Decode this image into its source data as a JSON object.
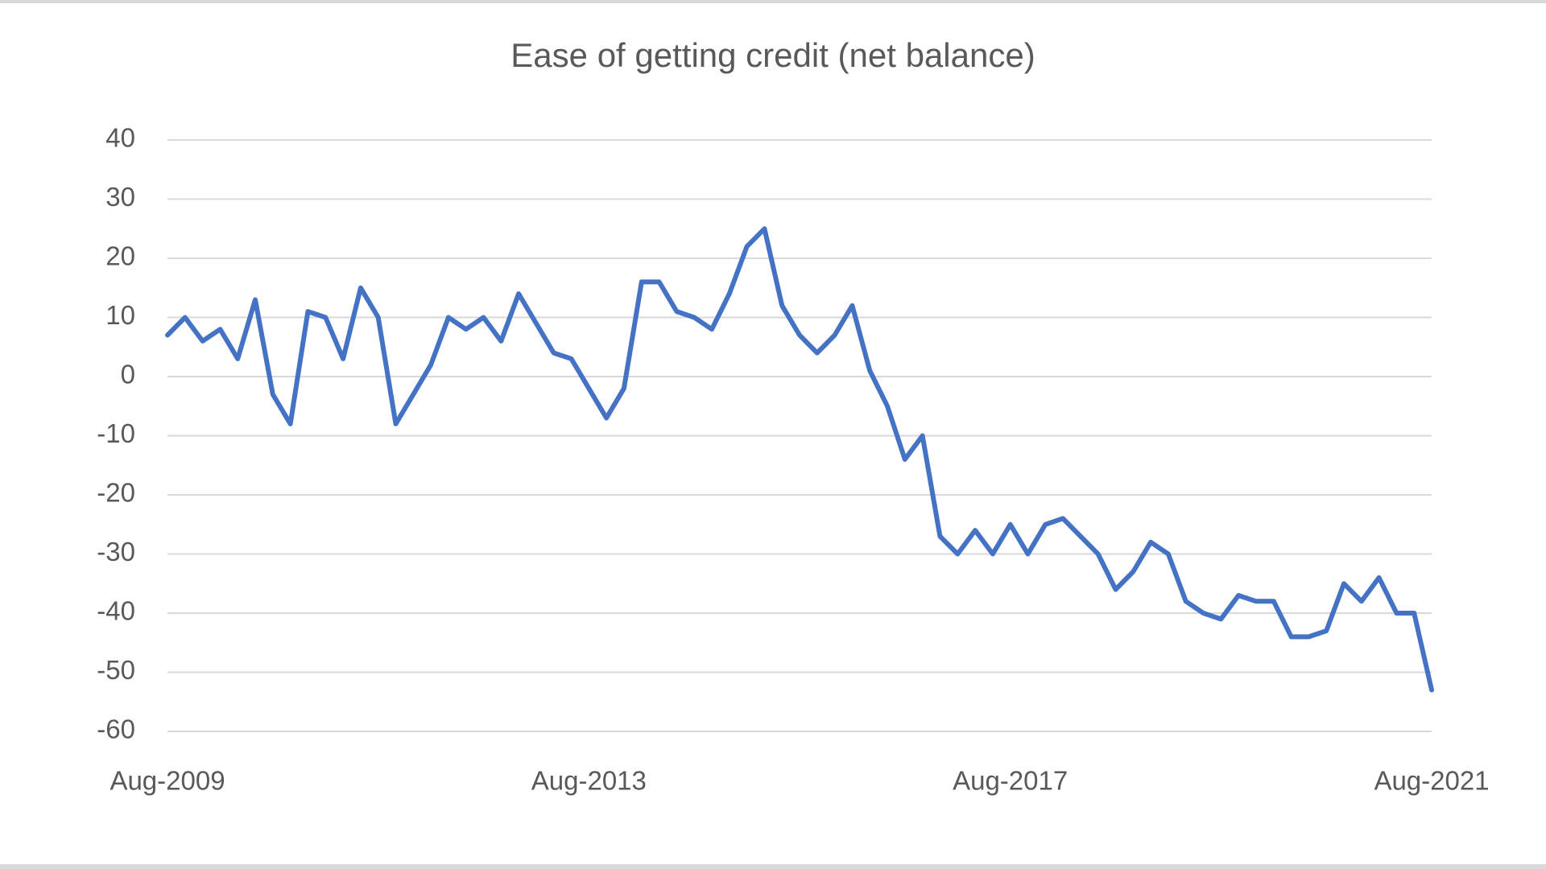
{
  "chart_data": {
    "type": "line",
    "title": "Ease of getting credit (net balance)",
    "categories": [
      "Aug-2009",
      null,
      null,
      null,
      null,
      null,
      null,
      null,
      null,
      null,
      null,
      null,
      null,
      null,
      null,
      null,
      null,
      null,
      null,
      null,
      null,
      null,
      null,
      null,
      "Aug-2013",
      null,
      null,
      null,
      null,
      null,
      null,
      null,
      null,
      null,
      null,
      null,
      null,
      null,
      null,
      null,
      null,
      null,
      null,
      null,
      null,
      null,
      null,
      null,
      "Aug-2017",
      null,
      null,
      null,
      null,
      null,
      null,
      null,
      null,
      null,
      null,
      null,
      null,
      null,
      null,
      null,
      null,
      null,
      null,
      null,
      null,
      null,
      null,
      null,
      "Aug-2021"
    ],
    "series": [
      {
        "name": "Ease of getting credit",
        "color": "#4472c4",
        "values": [
          7,
          10,
          6,
          8,
          3,
          13,
          -3,
          -8,
          11,
          10,
          3,
          15,
          10,
          -8,
          -3,
          2,
          10,
          8,
          10,
          6,
          14,
          9,
          4,
          3,
          -2,
          -7,
          -2,
          16,
          16,
          11,
          10,
          8,
          14,
          22,
          25,
          12,
          7,
          4,
          7,
          12,
          1,
          -5,
          -14,
          -10,
          -27,
          -30,
          -26,
          -30,
          -25,
          -30,
          -25,
          -24,
          -27,
          -30,
          -36,
          -33,
          -28,
          -30,
          -38,
          -40,
          -41,
          -37,
          -38,
          -38,
          -44,
          -44,
          -43,
          -35,
          -38,
          -34,
          -40,
          -40,
          -53
        ]
      }
    ],
    "ylim": [
      -60,
      40
    ],
    "yticks": [
      -60,
      -50,
      -40,
      -30,
      -20,
      -10,
      0,
      10,
      20,
      30,
      40
    ],
    "grid": true
  }
}
